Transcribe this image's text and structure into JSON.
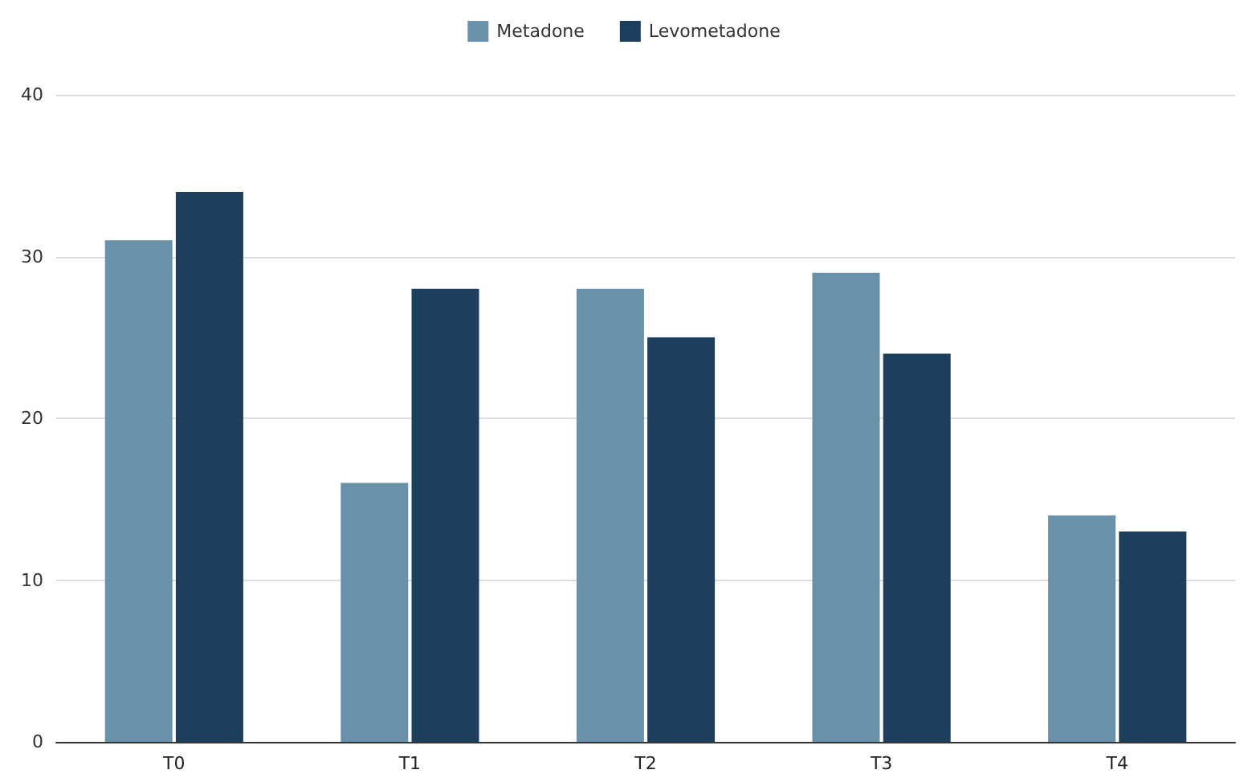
{
  "chart_data": {
    "type": "bar",
    "categories": [
      "T0",
      "T1",
      "T2",
      "T3",
      "T4"
    ],
    "series": [
      {
        "name": "Metadone",
        "color": "#6a91aa",
        "values": [
          31,
          16,
          28,
          29,
          14
        ]
      },
      {
        "name": "Levometadone",
        "color": "#1d3f5b",
        "values": [
          34,
          28,
          25,
          24,
          13
        ]
      }
    ],
    "ylim": [
      0,
      40
    ],
    "yticks": [
      0,
      10,
      20,
      30,
      40
    ],
    "grid": "y",
    "legend": "top"
  }
}
